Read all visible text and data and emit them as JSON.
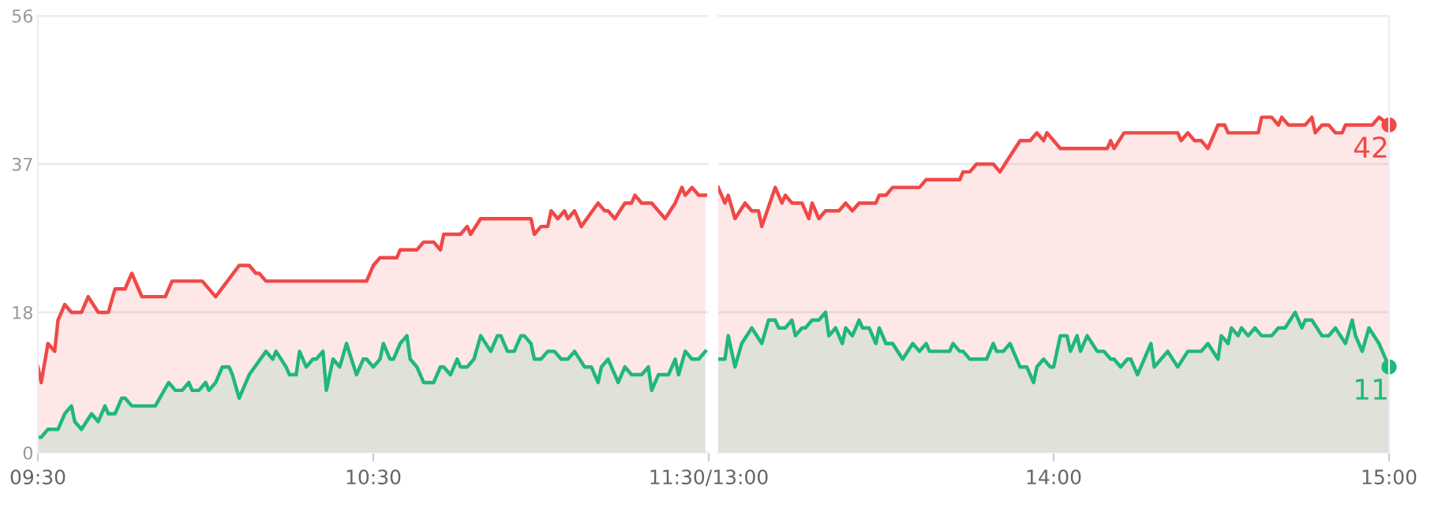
{
  "chart_data": [
    {
      "type": "area",
      "xlim": [
        9.5,
        11.5
      ],
      "ylim": [
        0,
        56
      ],
      "yticks": [
        0,
        18,
        37,
        56
      ],
      "xticks": [
        {
          "value": 9.5,
          "label": "09:30"
        },
        {
          "value": 10.5,
          "label": "10:30"
        },
        {
          "value": 11.5,
          "label": "11:30/13:00"
        }
      ],
      "grid": "y",
      "series": [
        {
          "color": "#f04848",
          "x": [
            9.5,
            9.51,
            9.53,
            9.55,
            9.56,
            9.58,
            9.6,
            9.63,
            9.65,
            9.68,
            9.71,
            9.73,
            9.76,
            9.78,
            9.8,
            9.81,
            9.88,
            9.9,
            9.99,
            10.03,
            10.1,
            10.13,
            10.15,
            10.16,
            10.18,
            10.48,
            10.5,
            10.52,
            10.57,
            10.58,
            10.63,
            10.65,
            10.68,
            10.7,
            10.71,
            10.76,
            10.78,
            10.79,
            10.82,
            10.97,
            10.98,
            11,
            11.02,
            11.03,
            11.05,
            11.07,
            11.08,
            11.1,
            11.12,
            11.17,
            11.19,
            11.2,
            11.22,
            11.25,
            11.27,
            11.28,
            11.3,
            11.33,
            11.37,
            11.4,
            11.42,
            11.43,
            11.45,
            11.47,
            11.49
          ],
          "values": [
            11,
            9,
            14,
            13,
            17,
            19,
            18,
            18,
            20,
            18,
            18,
            21,
            21,
            23,
            21,
            20,
            20,
            22,
            22,
            20,
            24,
            24,
            23,
            23,
            22,
            22,
            24,
            25,
            25,
            26,
            26,
            27,
            27,
            26,
            28,
            28,
            29,
            28,
            30,
            30,
            28,
            29,
            29,
            31,
            30,
            31,
            30,
            31,
            29,
            32,
            31,
            31,
            30,
            32,
            32,
            33,
            32,
            32,
            30,
            32,
            34,
            33,
            34,
            33,
            33
          ]
        },
        {
          "color": "#1fb878",
          "x": [
            9.5,
            9.51,
            9.53,
            9.56,
            9.58,
            9.6,
            9.61,
            9.63,
            9.66,
            9.68,
            9.7,
            9.71,
            9.73,
            9.75,
            9.76,
            9.78,
            9.85,
            9.89,
            9.91,
            9.93,
            9.95,
            9.96,
            9.98,
            10,
            10.01,
            10.03,
            10.05,
            10.07,
            10.08,
            10.1,
            10.11,
            10.13,
            10.18,
            10.2,
            10.21,
            10.24,
            10.25,
            10.27,
            10.28,
            10.3,
            10.32,
            10.33,
            10.35,
            10.36,
            10.38,
            10.4,
            10.42,
            10.45,
            10.47,
            10.48,
            10.5,
            10.52,
            10.53,
            10.55,
            10.56,
            10.58,
            10.6,
            10.61,
            10.63,
            10.65,
            10.68,
            10.7,
            10.71,
            10.73,
            10.75,
            10.76,
            10.78,
            10.8,
            10.82,
            10.85,
            10.87,
            10.88,
            10.9,
            10.92,
            10.94,
            10.95,
            10.97,
            10.98,
            11,
            11.02,
            11.04,
            11.06,
            11.08,
            11.1,
            11.13,
            11.15,
            11.17,
            11.18,
            11.2,
            11.21,
            11.23,
            11.25,
            11.27,
            11.3,
            11.32,
            11.33,
            11.35,
            11.38,
            11.4,
            11.41,
            11.43,
            11.45,
            11.47,
            11.49
          ],
          "values": [
            2,
            2,
            3,
            3,
            5,
            6,
            4,
            3,
            5,
            4,
            6,
            5,
            5,
            7,
            7,
            6,
            6,
            9,
            8,
            8,
            9,
            8,
            8,
            9,
            8,
            9,
            11,
            11,
            10,
            7,
            8,
            10,
            13,
            12,
            13,
            11,
            10,
            10,
            13,
            11,
            12,
            12,
            13,
            8,
            12,
            11,
            14,
            10,
            12,
            12,
            11,
            12,
            14,
            12,
            12,
            14,
            15,
            12,
            11,
            9,
            9,
            11,
            11,
            10,
            12,
            11,
            11,
            12,
            15,
            13,
            15,
            15,
            13,
            13,
            15,
            15,
            14,
            12,
            12,
            13,
            13,
            12,
            12,
            13,
            11,
            11,
            9,
            11,
            12,
            11,
            9,
            11,
            10,
            10,
            11,
            8,
            10,
            10,
            12,
            10,
            13,
            12,
            12,
            13
          ]
        }
      ]
    },
    {
      "type": "area",
      "xlim": [
        13,
        15
      ],
      "ylim": [
        0,
        56
      ],
      "yticks": [
        0,
        18,
        37,
        56
      ],
      "xticks": [
        {
          "value": 14,
          "label": "14:00"
        },
        {
          "value": 15,
          "label": "15:00"
        }
      ],
      "grid": "y",
      "tick_labels": "x",
      "series": [
        {
          "color": "#f04848",
          "x": [
            13,
            13.02,
            13.03,
            13.05,
            13.08,
            13.1,
            13.12,
            13.13,
            13.17,
            13.19,
            13.2,
            13.22,
            13.25,
            13.27,
            13.28,
            13.3,
            13.32,
            13.36,
            13.38,
            13.4,
            13.42,
            13.47,
            13.48,
            13.5,
            13.52,
            13.6,
            13.62,
            13.72,
            13.73,
            13.75,
            13.77,
            13.82,
            13.84,
            13.9,
            13.93,
            13.95,
            13.97,
            13.98,
            14.02,
            14.16,
            14.17,
            14.18,
            14.21,
            14.37,
            14.38,
            14.4,
            14.42,
            14.44,
            14.46,
            14.49,
            14.51,
            14.52,
            14.61,
            14.62,
            14.65,
            14.67,
            14.68,
            14.7,
            14.75,
            14.77,
            14.78,
            14.8,
            14.82,
            14.84,
            14.86,
            14.87,
            14.95,
            14.97,
            15
          ],
          "values": [
            34,
            32,
            33,
            30,
            32,
            31,
            31,
            29,
            34,
            32,
            33,
            32,
            32,
            30,
            32,
            30,
            31,
            31,
            32,
            31,
            32,
            32,
            33,
            33,
            34,
            34,
            35,
            35,
            36,
            36,
            37,
            37,
            36,
            40,
            40,
            41,
            40,
            41,
            39,
            39,
            40,
            39,
            41,
            41,
            40,
            41,
            40,
            40,
            39,
            42,
            42,
            41,
            41,
            43,
            43,
            42,
            43,
            42,
            42,
            43,
            41,
            42,
            42,
            41,
            41,
            42,
            42,
            43,
            42
          ]
        },
        {
          "color": "#1fb878",
          "x": [
            13,
            13.02,
            13.03,
            13.05,
            13.07,
            13.1,
            13.13,
            13.15,
            13.17,
            13.18,
            13.2,
            13.22,
            13.23,
            13.25,
            13.26,
            13.28,
            13.3,
            13.32,
            13.33,
            13.35,
            13.37,
            13.38,
            13.4,
            13.42,
            13.43,
            13.45,
            13.47,
            13.48,
            13.5,
            13.52,
            13.55,
            13.58,
            13.6,
            13.62,
            13.63,
            13.69,
            13.7,
            13.72,
            13.73,
            13.75,
            13.8,
            13.82,
            13.83,
            13.85,
            13.87,
            13.89,
            13.9,
            13.92,
            13.94,
            13.95,
            13.97,
            13.99,
            14,
            14.02,
            14.04,
            14.05,
            14.07,
            14.08,
            14.1,
            14.13,
            14.15,
            14.17,
            14.18,
            14.2,
            14.22,
            14.23,
            14.25,
            14.29,
            14.3,
            14.34,
            14.37,
            14.4,
            14.44,
            14.46,
            14.49,
            14.5,
            14.52,
            14.53,
            14.55,
            14.56,
            14.58,
            14.6,
            14.62,
            14.65,
            14.67,
            14.69,
            14.72,
            14.74,
            14.75,
            14.77,
            14.8,
            14.82,
            14.84,
            14.87,
            14.89,
            14.9,
            14.92,
            14.94,
            14.97,
            15
          ],
          "values": [
            12,
            12,
            15,
            11,
            14,
            16,
            14,
            17,
            17,
            16,
            16,
            17,
            15,
            16,
            16,
            17,
            17,
            18,
            15,
            16,
            14,
            16,
            15,
            17,
            16,
            16,
            14,
            16,
            14,
            14,
            12,
            14,
            13,
            14,
            13,
            13,
            14,
            13,
            13,
            12,
            12,
            14,
            13,
            13,
            14,
            12,
            11,
            11,
            9,
            11,
            12,
            11,
            11,
            15,
            15,
            13,
            15,
            13,
            15,
            13,
            13,
            12,
            12,
            11,
            12,
            12,
            10,
            14,
            11,
            13,
            11,
            13,
            13,
            14,
            12,
            15,
            14,
            16,
            15,
            16,
            15,
            16,
            15,
            15,
            16,
            16,
            18,
            16,
            17,
            17,
            15,
            15,
            16,
            14,
            17,
            15,
            13,
            16,
            14,
            11
          ]
        }
      ],
      "annotations": [
        "42",
        "11"
      ]
    }
  ]
}
